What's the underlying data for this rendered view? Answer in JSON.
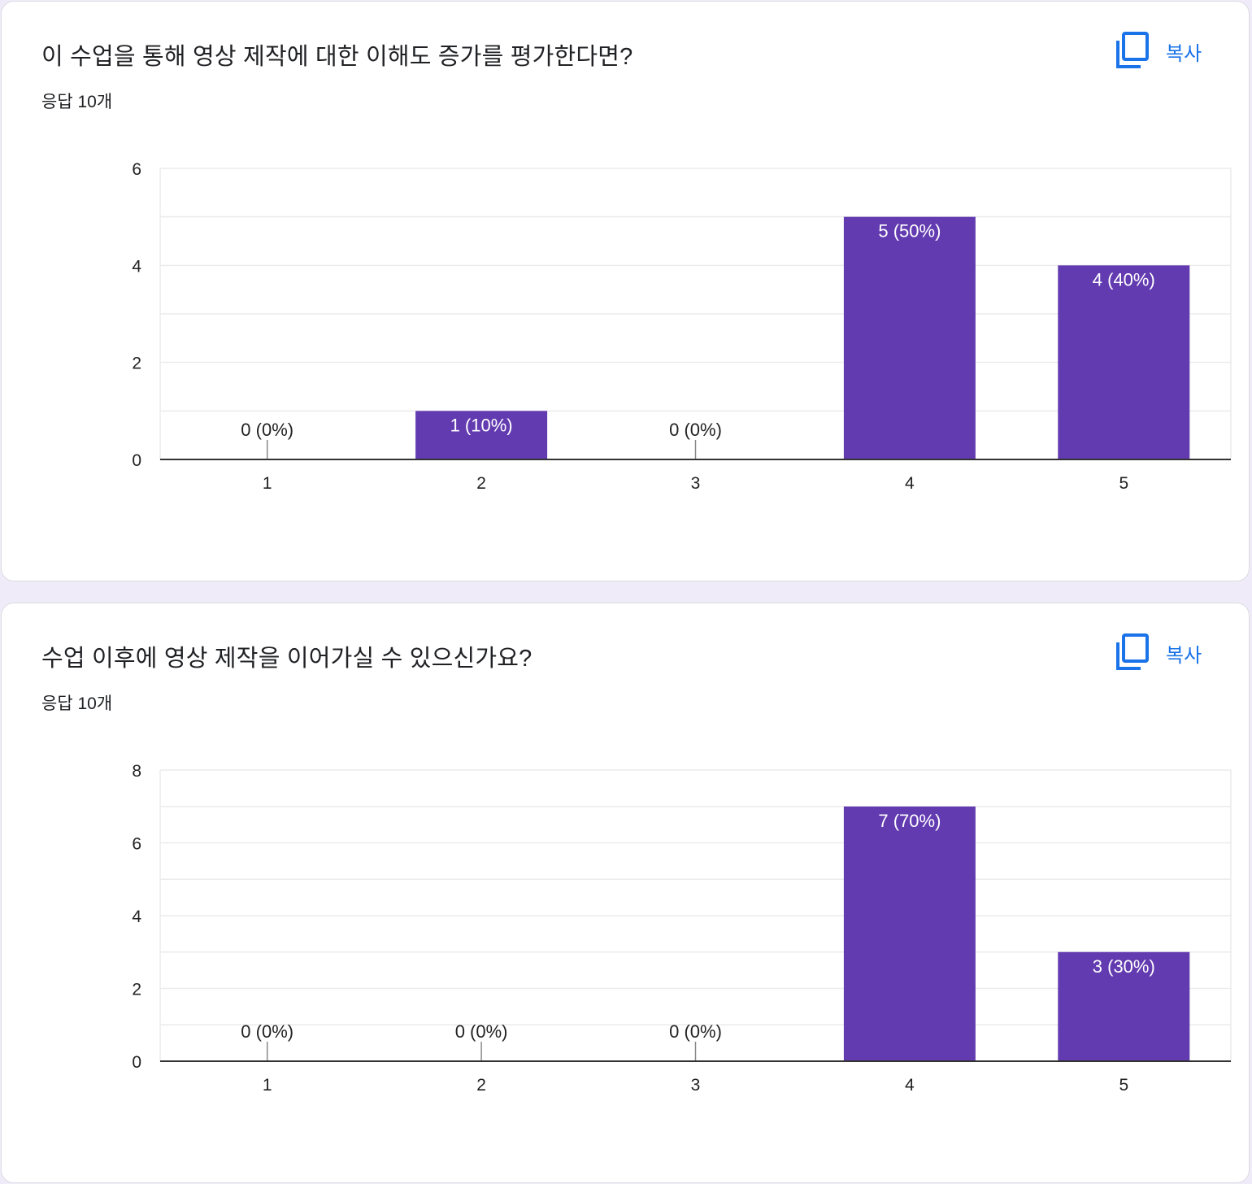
{
  "copy_label": "복사",
  "colors": {
    "bar": "#633bb0",
    "grid": "#ebebeb",
    "axis": "#333333",
    "label_inside": "#ffffff",
    "label_outside": "#222222",
    "link": "#1a73e8"
  },
  "charts": [
    {
      "title": "이 수업을 통해 영상 제작에 대한 이해도 증가를 평가한다면?",
      "response_count": "응답 10개"
    },
    {
      "title": "수업 이후에 영상 제작을 이어가실 수 있으신가요?",
      "response_count": "응답 10개"
    }
  ],
  "chart_data": [
    {
      "type": "bar",
      "categories": [
        "1",
        "2",
        "3",
        "4",
        "5"
      ],
      "values": [
        0,
        1,
        0,
        5,
        4
      ],
      "labels": [
        "0 (0%)",
        "1 (10%)",
        "0 (0%)",
        "5 (50%)",
        "4 (40%)"
      ],
      "ylim": [
        0,
        6
      ],
      "yticks": [
        0,
        2,
        4,
        6
      ],
      "minor_step": 1,
      "title": "이 수업을 통해 영상 제작에 대한 이해도 증가를 평가한다면?",
      "xlabel": "",
      "ylabel": "",
      "grid": true
    },
    {
      "type": "bar",
      "categories": [
        "1",
        "2",
        "3",
        "4",
        "5"
      ],
      "values": [
        0,
        0,
        0,
        7,
        3
      ],
      "labels": [
        "0 (0%)",
        "0 (0%)",
        "0 (0%)",
        "7 (70%)",
        "3 (30%)"
      ],
      "ylim": [
        0,
        8
      ],
      "yticks": [
        0,
        2,
        4,
        6,
        8
      ],
      "minor_step": 1,
      "title": "수업 이후에 영상 제작을 이어가실 수 있으신가요?",
      "xlabel": "",
      "ylabel": "",
      "grid": true
    }
  ]
}
